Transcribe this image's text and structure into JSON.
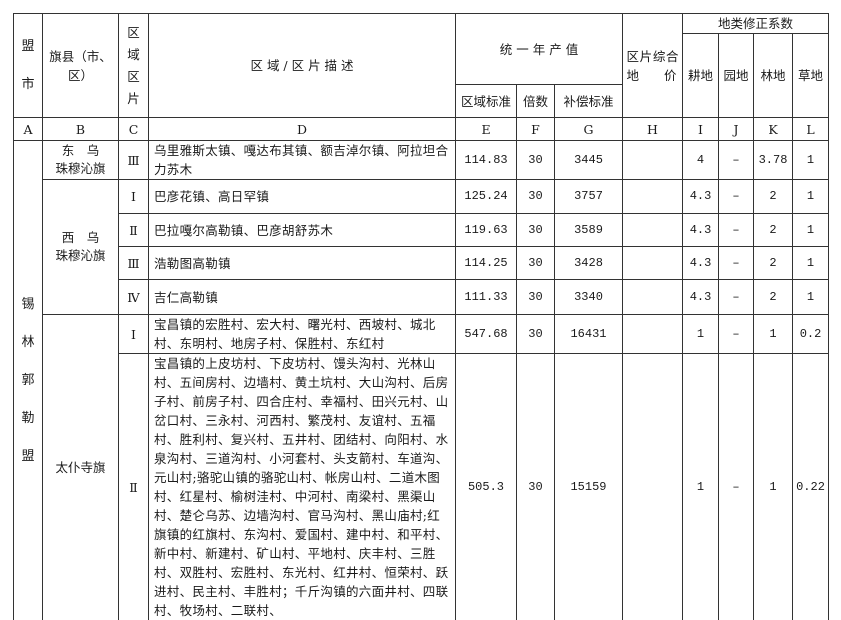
{
  "header": {
    "league_city": "盟市",
    "banner_county": "旗县（市、区）",
    "zone_area": "区域区片",
    "description": "区 域 / 区 片 描 述",
    "annual_output": "统 一 年 产 值",
    "zone_standard": "区域标准",
    "multiplier": "倍数",
    "compensation_standard": "补偿标准",
    "composite_price": "区片综合地　　价",
    "land_coefficient": "地类修正系数",
    "cultivated": "耕地",
    "garden": "园地",
    "forest": "林地",
    "grass": "草地"
  },
  "letters": [
    "A",
    "B",
    "C",
    "D",
    "E",
    "F",
    "G",
    "H",
    "I",
    "J",
    "K",
    "L"
  ],
  "league_name": "锡林郭勒盟",
  "rows": [
    {
      "county": "东　乌\n珠穆沁旗",
      "zone": "Ⅲ",
      "desc": "乌里雅斯太镇、嘎达布其镇、额吉淖尔镇、阿拉坦合力苏木",
      "E": "114.83",
      "F": "30",
      "G": "3445",
      "H": "",
      "I": "4",
      "J": "–",
      "K": "3.78",
      "L": "1"
    },
    {
      "county": "西　乌\n珠穆沁旗",
      "zone": "Ⅰ",
      "desc": "巴彦花镇、高日罕镇",
      "E": "125.24",
      "F": "30",
      "G": "3757",
      "H": "",
      "I": "4.3",
      "J": "–",
      "K": "2",
      "L": "1"
    },
    {
      "zone": "Ⅱ",
      "desc": "巴拉嘎尔高勒镇、巴彦胡舒苏木",
      "E": "119.63",
      "F": "30",
      "G": "3589",
      "H": "",
      "I": "4.3",
      "J": "–",
      "K": "2",
      "L": "1"
    },
    {
      "zone": "Ⅲ",
      "desc": "浩勒图高勒镇",
      "E": "114.25",
      "F": "30",
      "G": "3428",
      "H": "",
      "I": "4.3",
      "J": "–",
      "K": "2",
      "L": "1"
    },
    {
      "zone": "Ⅳ",
      "desc": "吉仁高勒镇",
      "E": "111.33",
      "F": "30",
      "G": "3340",
      "H": "",
      "I": "4.3",
      "J": "–",
      "K": "2",
      "L": "1"
    },
    {
      "county": "太仆寺旗",
      "zone": "Ⅰ",
      "desc": "宝昌镇的宏胜村、宏大村、曙光村、西坡村、城北村、东明村、地房子村、保胜村、东红村",
      "E": "547.68",
      "F": "30",
      "G": "16431",
      "H": "",
      "I": "1",
      "J": "–",
      "K": "1",
      "L": "0.2"
    },
    {
      "zone": "Ⅱ",
      "desc": "宝昌镇的上皮坊村、下皮坊村、馒头沟村、光林山村、五间房村、边墙村、黄土坑村、大山沟村、后房子村、前房子村、四合庄村、幸福村、田兴元村、山岔口村、三永村、河西村、繁茂村、友谊村、五福村、胜利村、复兴村、五井村、团结村、向阳村、水泉沟村、三道沟村、小河套村、头支箭村、车道沟、元山村;骆驼山镇的骆驼山村、帐房山村、二道木图村、红星村、榆树洼村、中河村、南梁村、黑渠山村、楚仑乌苏、边墙沟村、官马沟村、黑山庙村;红旗镇的红旗村、东沟村、爱国村、建中村、和平村、新中村、新建村、矿山村、平地村、庆丰村、三胜村、双胜村、宏胜村、东光村、红井村、恒荣村、跃进村、民主村、丰胜村；千斤沟镇的六面井村、四联村、牧场村、二联村、",
      "E": "505.3",
      "F": "30",
      "G": "15159",
      "H": "",
      "I": "1",
      "J": "–",
      "K": "1",
      "L": "0.22"
    }
  ]
}
